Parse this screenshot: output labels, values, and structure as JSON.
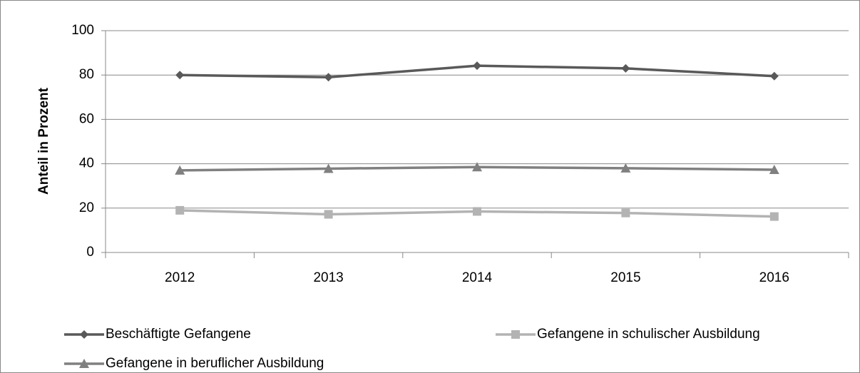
{
  "chart_data": {
    "type": "line",
    "y_label": "Anteil in Prozent",
    "categories": [
      "2012",
      "2013",
      "2014",
      "2015",
      "2016"
    ],
    "series": [
      {
        "name": "Beschäftigte Gefangene",
        "color": "#595959",
        "marker": "diamond",
        "values": [
          80,
          79,
          84.2,
          83,
          79.5
        ]
      },
      {
        "name": "Gefangene in schulischer Ausbildung",
        "color": "#b3b3b3",
        "marker": "square",
        "values": [
          19,
          17.2,
          18.5,
          17.8,
          16.2
        ]
      },
      {
        "name": "Gefangene in beruflicher Ausbildung",
        "color": "#808080",
        "marker": "triangle",
        "values": [
          37,
          37.8,
          38.5,
          38,
          37.3
        ]
      }
    ],
    "ylim": [
      0,
      100
    ],
    "yticks": [
      0,
      20,
      40,
      60,
      80,
      100
    ],
    "grid": true,
    "legend": "bottom"
  }
}
